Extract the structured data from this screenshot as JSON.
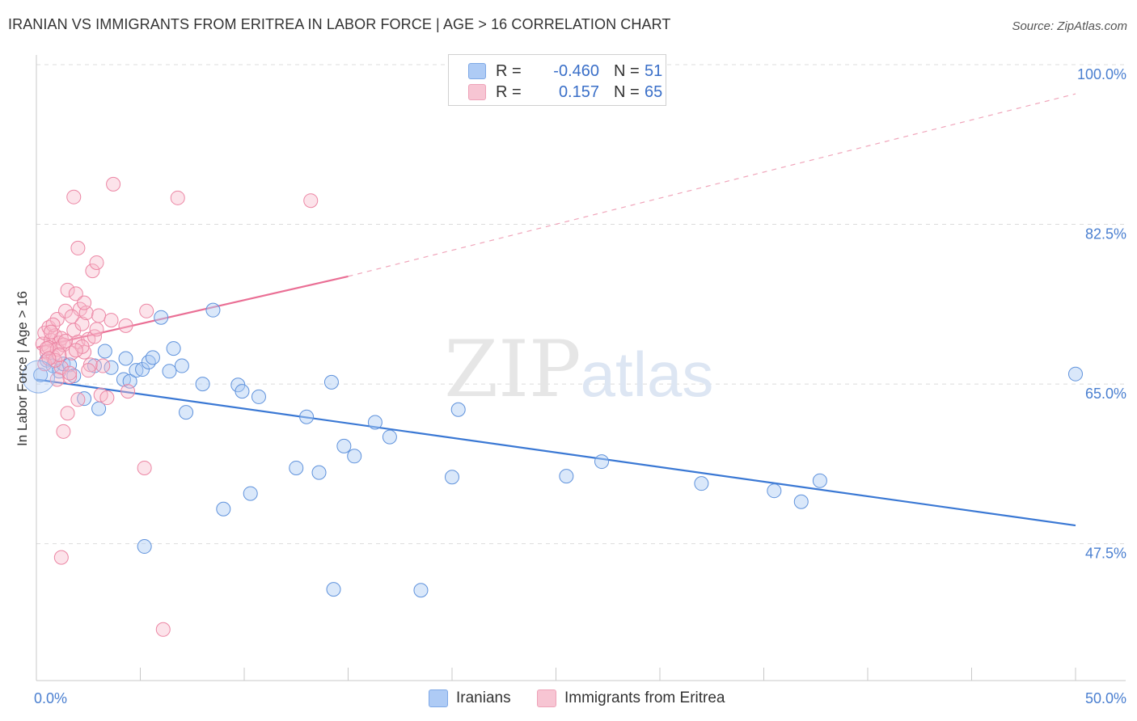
{
  "header": {
    "title": "IRANIAN VS IMMIGRANTS FROM ERITREA IN LABOR FORCE | AGE > 16 CORRELATION CHART",
    "source": "Source: ZipAtlas.com"
  },
  "watermark": {
    "zip": "ZIP",
    "atlas": "atlas"
  },
  "legend": {
    "rows": [
      {
        "r_label": "R =",
        "r_value": "-0.460",
        "n_label": "N =",
        "n_value": "51",
        "color": "#aecbf5"
      },
      {
        "r_label": "R =",
        "r_value": "0.157",
        "n_label": "N =",
        "n_value": "65",
        "color": "#f7b9ca"
      }
    ]
  },
  "bottom_legend": [
    {
      "label": "Iranians",
      "color": "#aecbf5"
    },
    {
      "label": "Immigrants from Eritrea",
      "color": "#f7b9ca"
    }
  ],
  "chart_data": {
    "type": "scatter",
    "ylabel": "In Labor Force | Age > 16",
    "xlabel": "",
    "xlim": [
      0,
      50
    ],
    "ylim": [
      32.5,
      100
    ],
    "x_tick_labels": [
      "0.0%",
      "50.0%"
    ],
    "y_ticks": [
      {
        "value": 100,
        "label": "100.0%"
      },
      {
        "value": 82.5,
        "label": "82.5%"
      },
      {
        "value": 65,
        "label": "65.0%"
      },
      {
        "value": 47.5,
        "label": "47.5%"
      }
    ],
    "grid": true,
    "colors": {
      "iranians": "#3a78d4",
      "eritrea": "#ea6f95"
    },
    "series": [
      {
        "name": "Iranians",
        "trend": {
          "x0": 0,
          "y0": 65.5,
          "x1": 50,
          "y1": 49.5
        },
        "points": [
          [
            0.2,
            66.0
          ],
          [
            0.5,
            67.6
          ],
          [
            0.8,
            67.0
          ],
          [
            1.1,
            66.4
          ],
          [
            1.3,
            67.2
          ],
          [
            1.6,
            67.1
          ],
          [
            1.8,
            65.9
          ],
          [
            2.3,
            63.4
          ],
          [
            2.8,
            67.0
          ],
          [
            3.0,
            62.3
          ],
          [
            3.3,
            68.6
          ],
          [
            3.6,
            66.8
          ],
          [
            4.2,
            65.5
          ],
          [
            4.3,
            67.8
          ],
          [
            4.5,
            65.3
          ],
          [
            4.8,
            66.5
          ],
          [
            5.1,
            66.6
          ],
          [
            5.4,
            67.4
          ],
          [
            5.6,
            67.9
          ],
          [
            6.0,
            72.3
          ],
          [
            6.4,
            66.4
          ],
          [
            6.6,
            68.9
          ],
          [
            7.0,
            67.0
          ],
          [
            7.2,
            61.9
          ],
          [
            8.0,
            65.0
          ],
          [
            8.5,
            73.1
          ],
          [
            9.7,
            64.9
          ],
          [
            9.9,
            64.2
          ],
          [
            10.7,
            63.6
          ],
          [
            13.0,
            61.4
          ],
          [
            14.2,
            65.2
          ],
          [
            14.8,
            58.2
          ],
          [
            15.3,
            57.1
          ],
          [
            16.3,
            60.8
          ],
          [
            17.0,
            59.2
          ],
          [
            20.3,
            62.2
          ],
          [
            27.2,
            56.5
          ],
          [
            32.0,
            54.1
          ],
          [
            36.8,
            52.1
          ],
          [
            37.7,
            54.4
          ],
          [
            50.0,
            66.1
          ],
          [
            5.2,
            47.2
          ],
          [
            13.6,
            55.3
          ],
          [
            12.5,
            55.8
          ],
          [
            10.3,
            53.0
          ],
          [
            9.0,
            51.3
          ],
          [
            14.3,
            42.5
          ],
          [
            18.5,
            42.4
          ],
          [
            20.0,
            54.8
          ],
          [
            25.5,
            54.9
          ],
          [
            35.5,
            53.3
          ]
        ]
      },
      {
        "name": "Immigrants from Eritrea",
        "trend": {
          "x0": 0,
          "y0": 69.0,
          "x1": 15,
          "y1": 76.8
        },
        "trend_extension": {
          "x0": 15,
          "y0": 76.8,
          "x1": 50,
          "y1": 96.8
        },
        "points": [
          [
            0.3,
            69.4
          ],
          [
            0.4,
            70.6
          ],
          [
            0.5,
            68.5
          ],
          [
            0.6,
            71.2
          ],
          [
            0.7,
            69.8
          ],
          [
            0.8,
            68.0
          ],
          [
            0.9,
            70.3
          ],
          [
            1.0,
            72.1
          ],
          [
            1.1,
            69.5
          ],
          [
            1.2,
            66.8
          ],
          [
            0.4,
            67.2
          ],
          [
            0.6,
            69.0
          ],
          [
            0.8,
            71.5
          ],
          [
            1.0,
            68.8
          ],
          [
            1.2,
            70.0
          ],
          [
            1.3,
            69.3
          ],
          [
            1.4,
            73.0
          ],
          [
            1.5,
            75.3
          ],
          [
            1.6,
            65.8
          ],
          [
            1.7,
            68.4
          ],
          [
            1.8,
            70.9
          ],
          [
            1.9,
            74.9
          ],
          [
            2.0,
            69.6
          ],
          [
            2.1,
            73.2
          ],
          [
            2.2,
            71.6
          ],
          [
            2.3,
            68.5
          ],
          [
            2.4,
            72.8
          ],
          [
            2.5,
            69.9
          ],
          [
            2.7,
            77.4
          ],
          [
            2.9,
            78.3
          ],
          [
            3.0,
            72.5
          ],
          [
            3.1,
            63.8
          ],
          [
            3.4,
            63.5
          ],
          [
            4.3,
            71.4
          ],
          [
            4.4,
            64.2
          ],
          [
            5.3,
            73.0
          ],
          [
            5.2,
            55.8
          ],
          [
            1.8,
            85.5
          ],
          [
            3.7,
            86.9
          ],
          [
            6.8,
            85.4
          ],
          [
            13.2,
            85.1
          ],
          [
            2.0,
            79.9
          ],
          [
            1.5,
            61.8
          ],
          [
            2.0,
            63.3
          ],
          [
            1.3,
            59.8
          ],
          [
            1.2,
            46.0
          ],
          [
            6.1,
            38.1
          ],
          [
            1.6,
            66.2
          ],
          [
            0.9,
            67.6
          ],
          [
            2.6,
            67.1
          ],
          [
            2.2,
            69.1
          ],
          [
            1.1,
            68.2
          ],
          [
            0.7,
            70.7
          ],
          [
            1.4,
            69.7
          ],
          [
            0.5,
            68.9
          ],
          [
            2.5,
            66.5
          ],
          [
            2.8,
            70.2
          ],
          [
            3.2,
            67.0
          ],
          [
            1.7,
            72.4
          ],
          [
            0.6,
            67.8
          ],
          [
            1.9,
            68.7
          ],
          [
            2.3,
            73.9
          ],
          [
            1.0,
            65.5
          ],
          [
            3.6,
            72.0
          ],
          [
            2.9,
            71.0
          ]
        ]
      }
    ]
  }
}
